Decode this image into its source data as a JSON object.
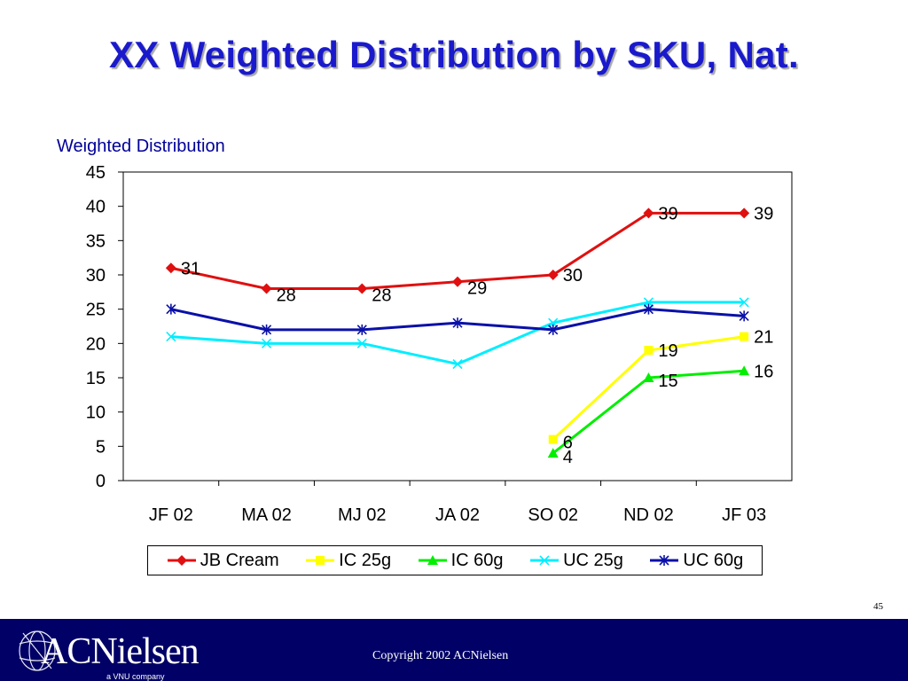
{
  "slide": {
    "title": "XX Weighted Distribution by SKU, Nat.",
    "page_number": "45"
  },
  "footer": {
    "logo_text": "ACNielsen",
    "logo_subtext": "a VNU company",
    "copyright": "Copyright 2002 ACNielsen",
    "bar_color": "#000066"
  },
  "chart_data": {
    "type": "line",
    "title": "",
    "ylabel": "Weighted Distribution",
    "xlabel": "",
    "ylim": [
      0,
      45
    ],
    "yticks": [
      0,
      5,
      10,
      15,
      20,
      25,
      30,
      35,
      40,
      45
    ],
    "grid": false,
    "legend_position": "bottom",
    "categories": [
      "JF 02",
      "MA 02",
      "MJ 02",
      "JA 02",
      "SO 02",
      "ND 02",
      "JF 03"
    ],
    "series": [
      {
        "name": "JB Cream",
        "color": "#e01010",
        "marker": "diamond",
        "labeled": true,
        "values": [
          31,
          28,
          28,
          29,
          30,
          39,
          39
        ]
      },
      {
        "name": "IC 25g",
        "color": "#ffff00",
        "marker": "square",
        "labeled": true,
        "values": [
          null,
          null,
          null,
          null,
          6,
          19,
          21
        ]
      },
      {
        "name": "IC 60g",
        "color": "#00ee00",
        "marker": "triangle",
        "labeled": true,
        "values": [
          null,
          null,
          null,
          null,
          4,
          15,
          16
        ]
      },
      {
        "name": "UC 25g",
        "color": "#00eeff",
        "marker": "x",
        "labeled": false,
        "values": [
          21,
          20,
          20,
          17,
          23,
          26,
          26
        ]
      },
      {
        "name": "UC 60g",
        "color": "#0a10a8",
        "marker": "asterisk",
        "labeled": false,
        "values": [
          25,
          22,
          22,
          23,
          22,
          25,
          24
        ]
      }
    ]
  }
}
